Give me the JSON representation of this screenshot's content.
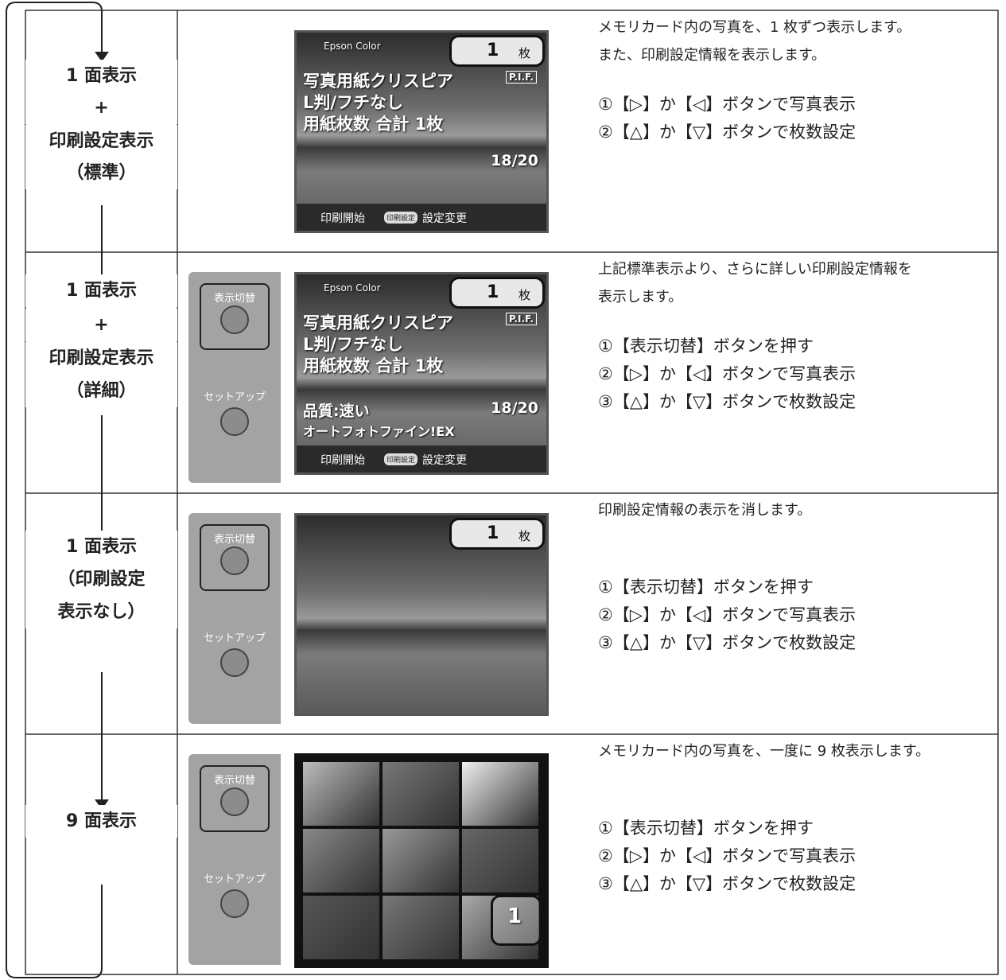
{
  "rows": [
    {
      "mode": [
        "1 面表示",
        "+",
        "印刷設定表示",
        "（標準）"
      ],
      "screen": {
        "brand": "Epson Color",
        "count": "1",
        "unit": "枚",
        "badge": "P.I.F.",
        "lines": [
          "写真用紙クリスピア",
          "L判/フチなし",
          "用紙枚数 合計 1枚"
        ],
        "page": "18/20",
        "footer": [
          "印刷開始",
          "印刷設定",
          "設定変更"
        ]
      },
      "description": [
        "メモリカード内の写真を、1 枚ずつ表示します。",
        "また、印刷設定情報を表示します。"
      ],
      "steps": [
        "①【▷】か【◁】ボタンで写真表示",
        "②【△】か【▽】ボタンで枚数設定"
      ]
    },
    {
      "mode": [
        "1 面表示",
        "+",
        "印刷設定表示",
        "（詳細）"
      ],
      "panel": {
        "toggle": "表示切替",
        "setup": "セットアップ"
      },
      "screen": {
        "brand": "Epson Color",
        "count": "1",
        "unit": "枚",
        "badge": "P.I.F.",
        "lines": [
          "写真用紙クリスピア",
          "L判/フチなし",
          "用紙枚数 合計 1枚"
        ],
        "quality": "品質:速い",
        "enhance": "オートフォトファイン!EX",
        "page": "18/20",
        "footer": [
          "印刷開始",
          "印刷設定",
          "設定変更"
        ]
      },
      "description": [
        "上記標準表示より、さらに詳しい印刷設定情報を",
        "表示します。"
      ],
      "steps": [
        "①【表示切替】ボタンを押す",
        "②【▷】か【◁】ボタンで写真表示",
        "③【△】か【▽】ボタンで枚数設定"
      ]
    },
    {
      "mode": [
        "1 面表示",
        "（印刷設定",
        "表示なし）"
      ],
      "panel": {
        "toggle": "表示切替",
        "setup": "セットアップ"
      },
      "screen": {
        "count": "1",
        "unit": "枚"
      },
      "description": [
        "印刷設定情報の表示を消します。"
      ],
      "steps": [
        "①【表示切替】ボタンを押す",
        "②【▷】か【◁】ボタンで写真表示",
        "③【△】か【▽】ボタンで枚数設定"
      ]
    },
    {
      "mode": [
        "9 面表示"
      ],
      "panel": {
        "toggle": "表示切替",
        "setup": "セットアップ"
      },
      "grid": {
        "count": "1"
      },
      "description": [
        "メモリカード内の写真を、一度に 9 枚表示します。"
      ],
      "steps": [
        "①【表示切替】ボタンを押す",
        "②【▷】か【◁】ボタンで写真表示",
        "③【△】か【▽】ボタンで枚数設定"
      ]
    }
  ]
}
